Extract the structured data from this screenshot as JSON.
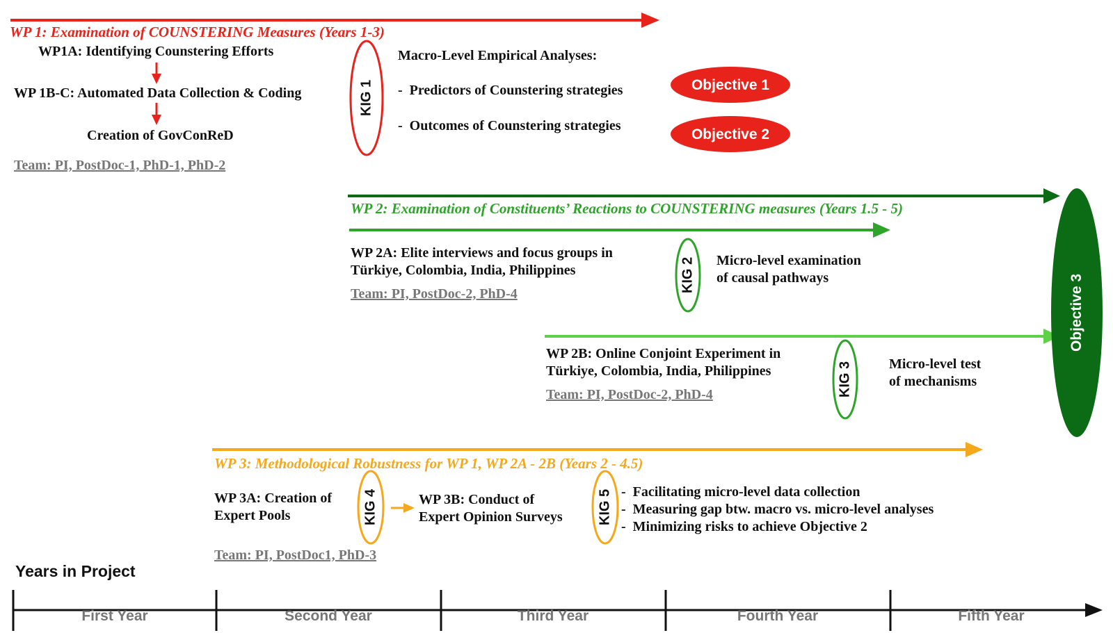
{
  "colors": {
    "red": "#e8231b",
    "dark_green": "#0c6b15",
    "green": "#2ea52a",
    "light_green": "#5fd148",
    "orange": "#f5a81c",
    "grey": "#777777"
  },
  "wp1": {
    "title": "WP 1: Examination of COUNSTERING Measures (Years 1-3)",
    "step_a": "WP1A: Identifying Counstering Efforts",
    "step_bc": "WP 1B-C: Automated Data Collection & Coding",
    "step_result": "Creation of GovConReD",
    "team": "Team: PI, PostDoc-1, PhD-1, PhD-2",
    "kig": "KIG 1",
    "analysis_heading": "Macro-Level Empirical Analyses:",
    "bullets": [
      "Predictors of Counstering strategies",
      "Outcomes of Counstering strategies"
    ],
    "objectives": [
      "Objective 1",
      "Objective 2"
    ]
  },
  "wp2": {
    "title": "WP 2: Examination of Constituents’ Reactions to COUNSTERING measures (Years 1.5 - 5)",
    "a": {
      "line1": "WP 2A: Elite interviews and focus groups in",
      "line2": "Türkiye, Colombia, India, Philippines",
      "team": "Team: PI, PostDoc-2, PhD-4",
      "kig": "KIG 2",
      "result1": "Micro-level examination",
      "result2": "of causal pathways"
    },
    "b": {
      "line1": "WP 2B: Online Conjoint Experiment in",
      "line2": "Türkiye, Colombia, India, Philippines",
      "team": "Team: PI, PostDoc-2, PhD-4",
      "kig": "KIG 3",
      "result1": "Micro-level test",
      "result2": "of mechanisms"
    },
    "objective": "Objective 3"
  },
  "wp3": {
    "title": "WP 3: Methodological Robustness for WP 1, WP 2A - 2B (Years 2 - 4.5)",
    "a_line1": "WP 3A: Creation of",
    "a_line2": "Expert Pools",
    "kig4": "KIG 4",
    "b_line1": "WP 3B: Conduct of",
    "b_line2": "Expert Opinion Surveys",
    "kig5": "KIG 5",
    "bullets": [
      "Facilitating micro-level data collection",
      "Measuring gap btw. macro vs. micro-level analyses",
      "Minimizing risks to achieve Objective 2"
    ],
    "team": "Team: PI, PostDoc1, PhD-3"
  },
  "timeline": {
    "heading": "Years in Project",
    "years": [
      "First Year",
      "Second Year",
      "Third Year",
      "Fourth Year",
      "Fifth Year"
    ]
  }
}
